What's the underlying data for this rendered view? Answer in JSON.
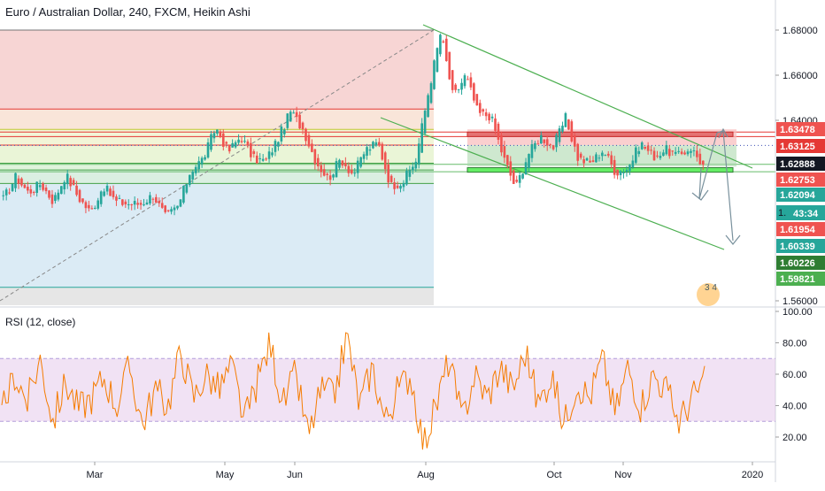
{
  "header": {
    "title": "Euro / Australian Dollar, 240, FXCM, Heikin Ashi",
    "rsi_title": "RSI (12, close)",
    "countdown": "43:34",
    "watermark": "3 4"
  },
  "colors": {
    "bull": "#26a69a",
    "bear": "#ef5350",
    "rsi_line": "#f57c00",
    "rsi_band": "#e1bee7",
    "channel": "#4caf50",
    "resistance": "#e53935",
    "support_box": "#4caf50"
  },
  "chart_data": [
    {
      "type": "candlestick",
      "style": "Heikin Ashi",
      "x_axis": {
        "tick_labels": [
          "Mar",
          "May",
          "Jun",
          "Aug",
          "Oct",
          "Nov",
          "2020"
        ]
      },
      "y_axis": {
        "range": [
          1.555,
          1.685
        ],
        "tick_labels": [
          "1.68000",
          "1.66000",
          "1.64000",
          "1.56000"
        ],
        "price_labels": [
          {
            "value": "1.63478",
            "color": "#ef5350"
          },
          {
            "value": "1.63125",
            "color": "#e53935"
          },
          {
            "value": "1.62888",
            "color": "#131722"
          },
          {
            "value": "1.62753",
            "color": "#ef5350"
          },
          {
            "value": "1.62094",
            "color": "#26a69a"
          },
          {
            "value": "1.61954",
            "color": "#ef5350"
          },
          {
            "value": "1.60339",
            "color": "#26a69a"
          },
          {
            "value": "1.60226",
            "color": "#2e7d32"
          },
          {
            "value": "1.59821",
            "color": "#4caf50"
          }
        ]
      },
      "path_anchors": [
        1.605,
        1.615,
        1.608,
        1.612,
        1.604,
        1.616,
        1.606,
        1.599,
        1.611,
        1.604,
        1.603,
        1.603,
        1.607,
        1.597,
        1.602,
        1.618,
        1.623,
        1.637,
        1.626,
        1.633,
        1.623,
        1.622,
        1.632,
        1.644,
        1.636,
        1.622,
        1.614,
        1.623,
        1.616,
        1.627,
        1.63,
        1.611,
        1.613,
        1.622,
        1.652,
        1.679,
        1.65,
        1.66,
        1.643,
        1.642,
        1.624,
        1.61,
        1.625,
        1.633,
        1.628,
        1.641,
        1.623,
        1.621,
        1.627,
        1.617,
        1.619,
        1.63,
        1.624,
        1.627,
        1.624,
        1.628,
        1.62
      ],
      "fib_levels": [
        1.68,
        1.645,
        1.636,
        1.629,
        1.621,
        1.618,
        1.612,
        1.566
      ],
      "resistance_zone": [
        1.6328,
        1.6348
      ],
      "support_zone": [
        1.617,
        1.619
      ]
    },
    {
      "type": "line",
      "name": "RSI (12, close)",
      "y_axis": {
        "range": [
          10,
          100
        ],
        "tick_labels": [
          "100.00",
          "80.00",
          "60.00",
          "40.00",
          "20.00"
        ],
        "overbought": 70,
        "oversold": 30
      },
      "rsi_anchors": [
        35,
        60,
        42,
        70,
        30,
        55,
        38,
        45,
        58,
        40,
        65,
        28,
        50,
        40,
        75,
        45,
        60,
        50,
        65,
        30,
        55,
        80,
        40,
        60,
        20,
        50,
        45,
        85,
        40,
        65,
        30,
        50,
        60,
        15,
        40,
        70,
        30,
        60,
        45,
        65,
        50,
        75,
        40,
        60,
        28,
        55,
        45,
        70,
        35,
        65,
        40,
        60,
        50,
        30,
        45,
        55
      ]
    }
  ]
}
